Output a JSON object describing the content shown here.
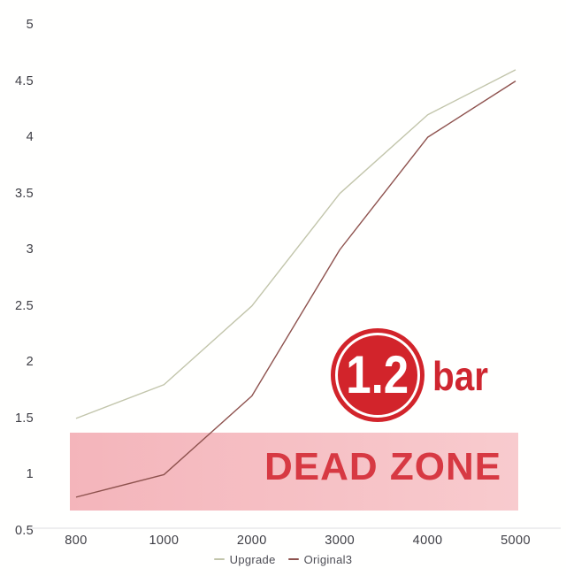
{
  "chart_data": {
    "type": "line",
    "title": "",
    "categories": [
      800,
      1000,
      2000,
      3000,
      4000,
      5000
    ],
    "x_tick_labels": [
      "800",
      "1000",
      "2000",
      "3000",
      "4000",
      "5000"
    ],
    "y_ticks": [
      5,
      4.5,
      4,
      3.5,
      3,
      2.5,
      2,
      1.5,
      1,
      0.5
    ],
    "y_tick_labels": [
      "5",
      "4.5",
      "4",
      "3.5",
      "3",
      "2.5",
      "2",
      "1.5",
      "1",
      "0.5"
    ],
    "ylim": [
      0.5,
      5
    ],
    "grid": false,
    "legend_position": "bottom",
    "axis_line_color": "#e8e8ea",
    "tick_label_color": "#3d3d44",
    "series": [
      {
        "name": "Upgrade",
        "color": "#c2c5ab",
        "values": [
          1.5,
          1.8,
          2.5,
          3.5,
          4.2,
          4.6
        ]
      },
      {
        "name": "Original3",
        "color": "#8e524e",
        "values": [
          0.8,
          1.0,
          1.7,
          3.0,
          4.0,
          4.5
        ]
      }
    ],
    "annotations": {
      "dead_zone_band": {
        "label": "DEAD ZONE",
        "y_from": 0.68,
        "y_to": 1.37,
        "band_color_left": "#f4b5bb",
        "band_color_right": "#f8cbce",
        "text_color": "#d73943"
      },
      "pressure_badge": {
        "value": "1.2",
        "unit": "bar",
        "badge_color": "#d2242b",
        "value_color": "#ffffff",
        "unit_color": "#cf2630"
      }
    }
  }
}
